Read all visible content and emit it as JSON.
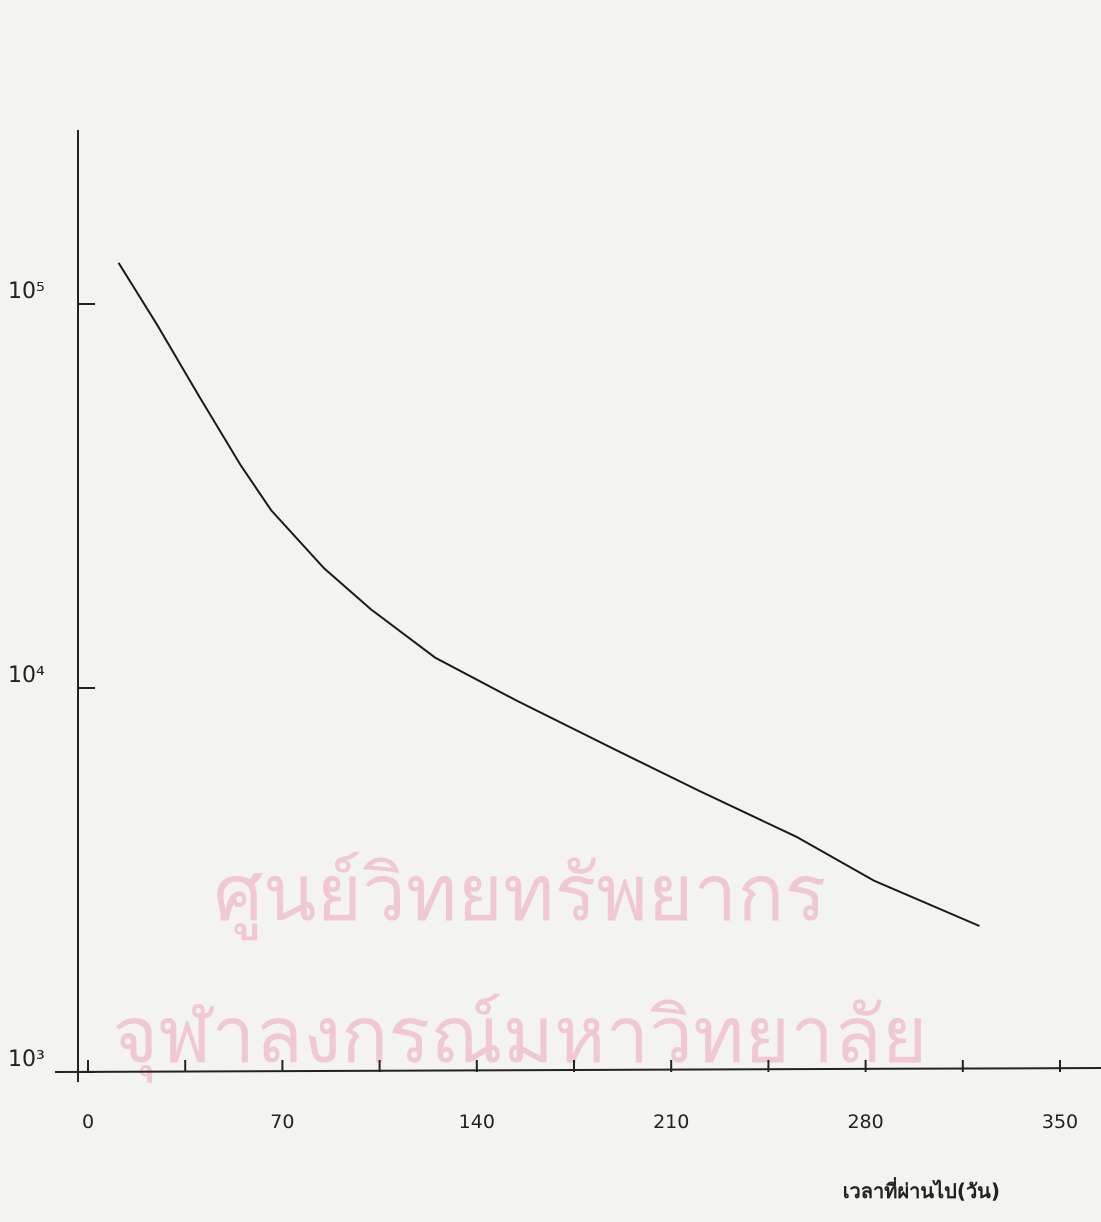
{
  "chart_data": {
    "type": "line",
    "xlabel": "เวลาที่ผ่านไป(วัน)",
    "watermark": [
      "ศูนย์วิทยทรัพยากร",
      "จุฬาลงกรณ์มหาวิทยาลัย"
    ],
    "ylog": true,
    "xlim": [
      0,
      350
    ],
    "ylim": [
      1000,
      280000
    ],
    "xticks": [
      0,
      70,
      140,
      210,
      280,
      350
    ],
    "xminor_ticks": [
      35,
      105,
      175,
      245,
      315
    ],
    "yticks": [
      {
        "value": 1000,
        "label": "10³"
      },
      {
        "value": 10000,
        "label": "10⁴"
      },
      {
        "value": 100000,
        "label": "10⁵"
      }
    ],
    "series": [
      {
        "color": "#1a1a1a",
        "x": [
          11,
          25,
          40,
          55,
          66,
          85,
          102,
          125,
          154,
          190,
          220,
          255,
          283,
          321
        ],
        "values": [
          128000,
          88000,
          57500,
          38000,
          29000,
          20500,
          16000,
          12000,
          9300,
          6900,
          5400,
          4100,
          3150,
          2400
        ]
      }
    ]
  }
}
